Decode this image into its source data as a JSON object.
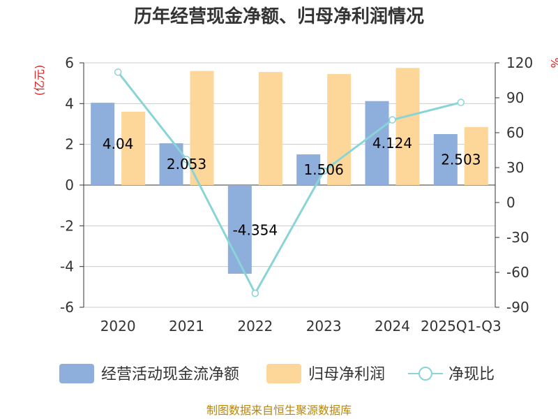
{
  "chart_data": {
    "type": "bar",
    "title": "历年经营现金净额、归母净利润情况",
    "left_axis_unit": "(亿元)",
    "right_axis_unit": "%",
    "categories": [
      "2020",
      "2021",
      "2022",
      "2023",
      "2024",
      "2025Q1-Q3"
    ],
    "series": [
      {
        "name": "经营活动现金流净额",
        "kind": "bar",
        "axis": "left",
        "color": "#8eaedb",
        "values": [
          4.04,
          2.053,
          -4.354,
          1.506,
          4.124,
          2.503
        ],
        "labels": [
          "4.04",
          "2.053",
          "-4.354",
          "1.506",
          "4.124",
          "2.503"
        ]
      },
      {
        "name": "归母净利润",
        "kind": "bar",
        "axis": "left",
        "color": "#fdd699",
        "values": [
          3.6,
          5.6,
          5.55,
          5.45,
          5.75,
          2.85
        ]
      },
      {
        "name": "净现比",
        "kind": "line",
        "axis": "right",
        "color": "#88d4d6",
        "values": [
          112,
          37,
          -78,
          27,
          71,
          86
        ]
      }
    ],
    "left_ylim": [
      -6,
      6
    ],
    "left_ticks": [
      6,
      4,
      2,
      0,
      -2,
      -4,
      -6
    ],
    "right_ylim": [
      -90,
      120
    ],
    "right_ticks": [
      120,
      90,
      60,
      30,
      0,
      -30,
      -60,
      -90
    ],
    "grid": true,
    "legend_position": "bottom"
  },
  "source_note": "制图数据来自恒生聚源数据库"
}
